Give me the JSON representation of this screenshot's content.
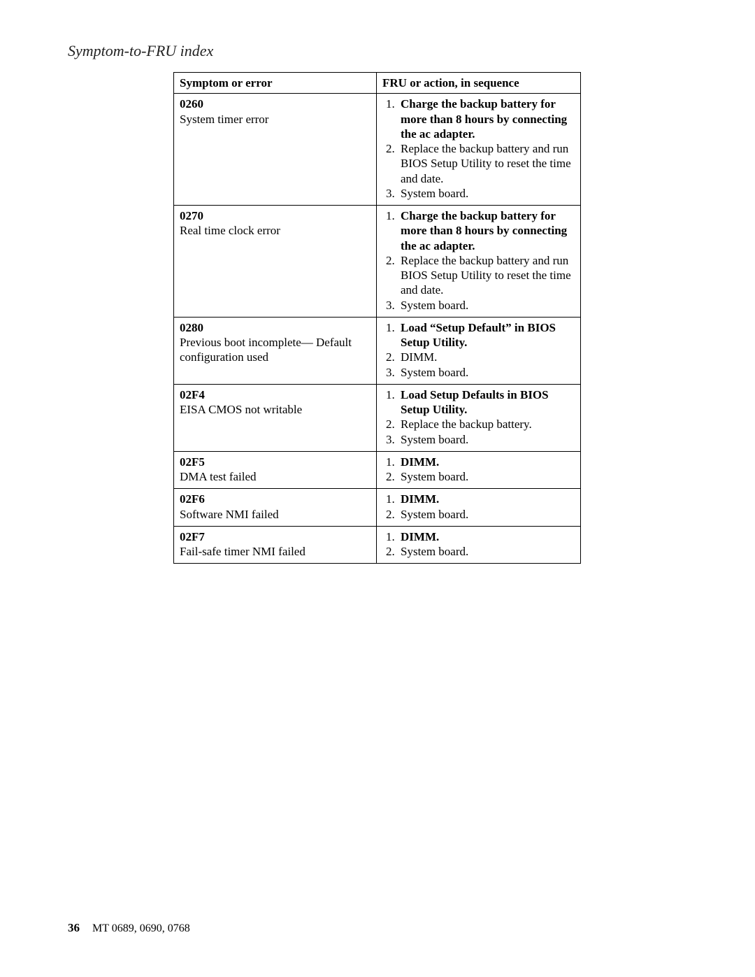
{
  "section_title": "Symptom-to-FRU index",
  "footer": {
    "page_number": "36",
    "model_text": "MT 0689, 0690, 0768"
  },
  "table": {
    "headers": {
      "left": "Symptom or error",
      "right": "FRU or action, in sequence"
    },
    "rows": [
      {
        "code": "0260",
        "desc": "System timer error",
        "actions": [
          {
            "text": "Charge the backup battery for more than 8 hours by connecting the ac adapter.",
            "bold": true
          },
          {
            "text": "Replace the backup battery and run BIOS Setup Utility to reset the time and date.",
            "bold": false
          },
          {
            "text": "System board.",
            "bold": false
          }
        ]
      },
      {
        "code": "0270",
        "desc": "Real time clock error",
        "actions": [
          {
            "text": "Charge the backup battery for more than 8 hours by connecting the ac adapter.",
            "bold": true
          },
          {
            "text": "Replace the backup battery and run BIOS Setup Utility to reset the time and date.",
            "bold": false
          },
          {
            "text": "System board.",
            "bold": false
          }
        ]
      },
      {
        "code": "0280",
        "desc": "Previous boot incomplete— Default configuration used",
        "actions": [
          {
            "text": "Load “Setup Default” in BIOS Setup Utility.",
            "bold": true
          },
          {
            "text": "DIMM.",
            "bold": false
          },
          {
            "text": "System board.",
            "bold": false
          }
        ]
      },
      {
        "code": "02F4",
        "desc": "EISA CMOS not writable",
        "actions": [
          {
            "text": "Load Setup Defaults in BIOS Setup Utility.",
            "bold": true
          },
          {
            "text": "Replace the backup battery.",
            "bold": false
          },
          {
            "text": "System board.",
            "bold": false
          }
        ]
      },
      {
        "code": "02F5",
        "desc": "DMA test failed",
        "actions": [
          {
            "text": "DIMM.",
            "bold": true
          },
          {
            "text": "System board.",
            "bold": false
          }
        ]
      },
      {
        "code": "02F6",
        "desc": "Software NMI failed",
        "actions": [
          {
            "text": "DIMM.",
            "bold": true
          },
          {
            "text": "System board.",
            "bold": false
          }
        ]
      },
      {
        "code": "02F7",
        "desc": "Fail-safe timer NMI failed",
        "actions": [
          {
            "text": "DIMM.",
            "bold": true
          },
          {
            "text": "System board.",
            "bold": false
          }
        ]
      }
    ]
  }
}
